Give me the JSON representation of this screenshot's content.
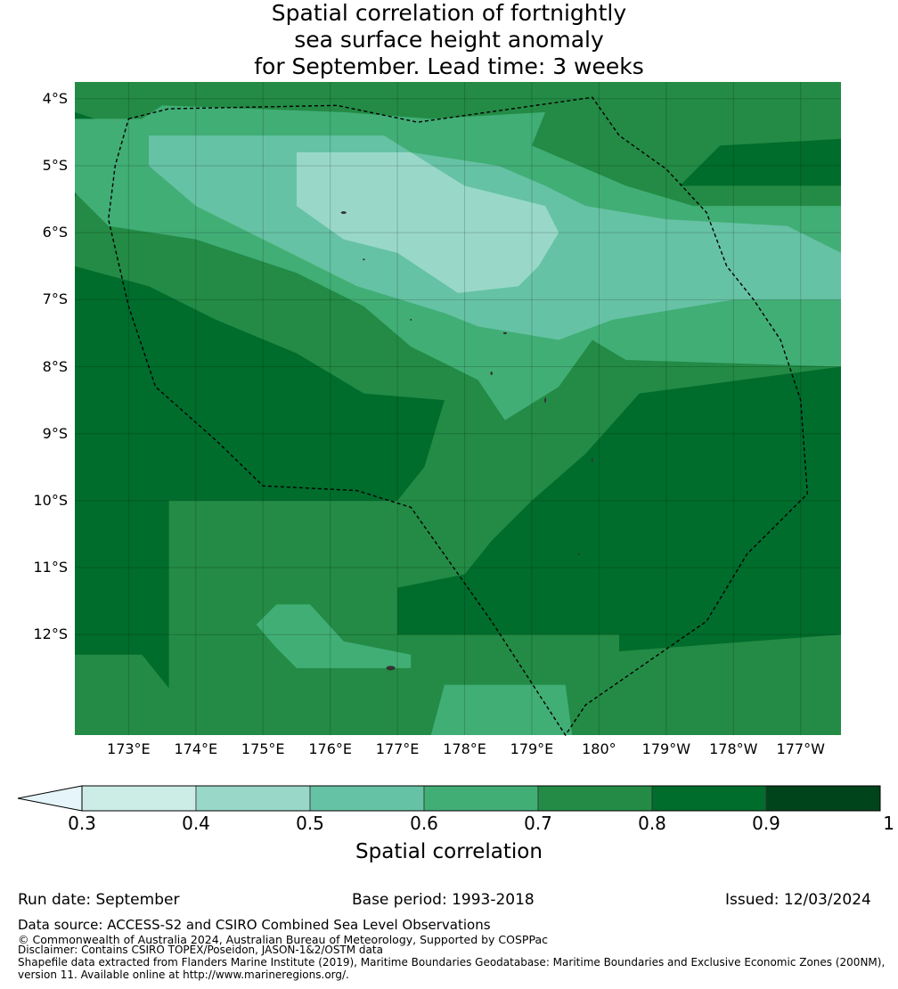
{
  "title": {
    "line1": "Spatial correlation of fortnightly",
    "line2": "sea surface height anomaly",
    "line3": "for September. Lead time: 3 weeks"
  },
  "map": {
    "lat_labels": [
      "4°S",
      "5°S",
      "6°S",
      "7°S",
      "8°S",
      "9°S",
      "10°S",
      "11°S",
      "12°S"
    ],
    "lon_labels": [
      "173°E",
      "174°E",
      "175°E",
      "176°E",
      "177°E",
      "178°E",
      "179°E",
      "180°",
      "179°W",
      "178°W",
      "177°W"
    ],
    "extent": {
      "lon_min": 172.2,
      "lon_max": 183.6,
      "lat_min": -13.5,
      "lat_max": -3.75
    },
    "colors": {
      "0.3-0.4": "#ccece6",
      "0.4-0.5": "#99d8c9",
      "0.5-0.6": "#66c2a4",
      "0.6-0.7": "#41ae76",
      "0.7-0.8": "#238b45",
      "0.8-0.9": "#006d2c",
      "0.9-1.0": "#00441b"
    },
    "eez_boundary": [
      [
        173.0,
        -4.3
      ],
      [
        173.6,
        -4.15
      ],
      [
        176.1,
        -4.1
      ],
      [
        177.3,
        -4.35
      ],
      [
        179.9,
        -3.98
      ],
      [
        180.3,
        -4.55
      ],
      [
        181.0,
        -5.05
      ],
      [
        181.6,
        -5.7
      ],
      [
        181.9,
        -6.5
      ],
      [
        182.3,
        -7.0
      ],
      [
        182.7,
        -7.6
      ],
      [
        183.0,
        -8.5
      ],
      [
        183.1,
        -9.9
      ],
      [
        182.2,
        -10.8
      ],
      [
        181.6,
        -11.8
      ],
      [
        179.8,
        -13.05
      ],
      [
        179.5,
        -13.5
      ],
      [
        178.4,
        -11.8
      ],
      [
        177.2,
        -10.1
      ],
      [
        176.4,
        -9.85
      ],
      [
        175.0,
        -9.78
      ],
      [
        174.3,
        -9.1
      ],
      [
        173.4,
        -8.3
      ],
      [
        173.0,
        -7.1
      ],
      [
        172.7,
        -5.8
      ],
      [
        172.8,
        -5.0
      ],
      [
        173.0,
        -4.3
      ]
    ]
  },
  "colorbar": {
    "label": "Spatial correlation",
    "ticks": [
      "0.3",
      "0.4",
      "0.5",
      "0.6",
      "0.7",
      "0.8",
      "0.9",
      "1"
    ],
    "extend_color": "#e5f5f9"
  },
  "footer": {
    "run_date": "Run date: September",
    "base_period": "Base period: 1993-2018",
    "issued": "Issued: 12/03/2024",
    "data_source": "Data source: ACCESS-S2 and CSIRO Combined Sea Level Observations",
    "copyright": "© Commonwealth of Australia 2024, Australian Bureau of Meteorology, Supported by COSPPac",
    "disclaimer": "Disclaimer: Contains CSIRO TOPEX/Poseidon, JASON-1&2/OSTM data",
    "shapefile1": "Shapefile data extracted from Flanders Marine Institute (2019), Maritime Boundaries Geodatabase: Maritime Boundaries and Exclusive Economic Zones (200NM),",
    "shapefile2": "version 11. Available online at http://www.marineregions.org/."
  }
}
